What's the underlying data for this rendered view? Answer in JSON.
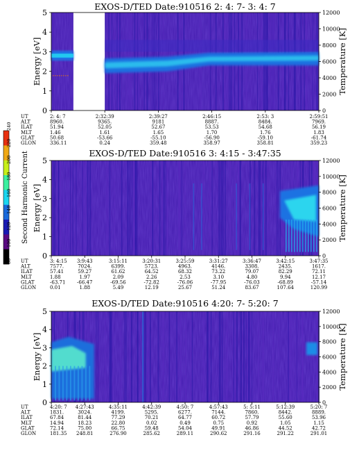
{
  "chart_data": [
    {
      "type": "heatmap",
      "title": "EXOS-D/TED   Date:910516  2: 4: 7- 3: 4: 7",
      "ylabel": "Energy [eV]",
      "y2label": "Temperature [K]",
      "ylim": [
        0,
        5
      ],
      "y_ticks": [
        "0",
        "1",
        "2",
        "3",
        "4",
        "5"
      ],
      "y2lim": [
        0,
        12000
      ],
      "y2_ticks": [
        "0",
        "2000",
        "4000",
        "6000",
        "8000",
        "10000",
        "12000"
      ],
      "data_gap": [
        "2: 4: 7",
        "2:32:39"
      ],
      "row_labels": [
        "UT",
        "ALT",
        "ILAT",
        "MLT",
        "GLAT",
        "GLON"
      ],
      "columns": [
        {
          "UT": "2: 4: 7",
          "ALT": "8960.",
          "ILAT": "51.94",
          "MLT": "1.46",
          "GLAT": "50.68",
          "GLON": "336.11"
        },
        {
          "UT": "2:32:39",
          "ALT": "9365.",
          "ILAT": "52.05",
          "MLT": "1.61",
          "GLAT": "-53.66",
          "GLON": "0.24"
        },
        {
          "UT": "2:39:27",
          "ALT": "9181",
          "ILAT": "52.67",
          "MLT": "1.65",
          "GLAT": "-55.10",
          "GLON": "359.48"
        },
        {
          "UT": "2:46:15",
          "ALT": "8887.",
          "ILAT": "53.53",
          "MLT": "1.70",
          "GLAT": "-56.90",
          "GLON": "358.97"
        },
        {
          "UT": "2:53: 3",
          "ALT": "8484.",
          "ILAT": "54.68",
          "MLT": "1.76",
          "GLAT": "-59.10",
          "GLON": "358.81"
        },
        {
          "UT": "2:59:51",
          "ALT": "7969.",
          "ILAT": "56.19",
          "MLT": "1.83",
          "GLAT": "-61.74",
          "GLON": "359.23"
        }
      ]
    },
    {
      "type": "heatmap",
      "title": "EXOS-D/TED   Date:910516  3: 4:15 - 3:47:35",
      "ylabel": "Energy [eV]",
      "y2label": "Temperature [K]",
      "ylim": [
        0,
        5
      ],
      "y_ticks": [
        "0",
        "1",
        "2",
        "3",
        "4",
        "5"
      ],
      "y2lim": [
        0,
        12000
      ],
      "y2_ticks": [
        "0",
        "2000",
        "4000",
        "6000",
        "8000",
        "10000",
        "12000"
      ],
      "row_labels": [
        "UT",
        "ALT",
        "ILAT",
        "MLT",
        "GLAT",
        "GLON"
      ],
      "columns": [
        {
          "UT": "3: 4:15",
          "ALT": "7577.",
          "ILAT": "57.41",
          "MLT": "1.88",
          "GLAT": "-63.71",
          "GLON": "0.01"
        },
        {
          "UT": "3:9:43",
          "ALT": "7024.",
          "ILAT": "59.27",
          "MLT": "1.97",
          "GLAT": "-66.47",
          "GLON": "1.88"
        },
        {
          "UT": "3:15:11",
          "ALT": "6399.",
          "ILAT": "61.62",
          "MLT": "2.09",
          "GLAT": "-69.56",
          "GLON": "5.49"
        },
        {
          "UT": "3:20:31",
          "ALT": "5723.",
          "ILAT": "64.52",
          "MLT": "2.26",
          "GLAT": "-72.82",
          "GLON": "12.19"
        },
        {
          "UT": "3:25:59",
          "ALT": "4963.",
          "ILAT": "68.32",
          "MLT": "2.53",
          "GLAT": "-76.06",
          "GLON": "25.67"
        },
        {
          "UT": "3:31:27",
          "ALT": "4146.",
          "ILAT": "73.22",
          "MLT": "3.10",
          "GLAT": "-77.95",
          "GLON": "51.24"
        },
        {
          "UT": "3:36:47",
          "ALT": "3308.",
          "ILAT": "79.07",
          "MLT": "4.80",
          "GLAT": "-76.03",
          "GLON": "83.67"
        },
        {
          "UT": "3:42:15",
          "ALT": "2435.",
          "ILAT": "82.29",
          "MLT": "9.94",
          "GLAT": "-68.89",
          "GLON": "107.64"
        },
        {
          "UT": "3:47:35",
          "ALT": "1617.",
          "ILAT": "72.11",
          "MLT": "12.17",
          "GLAT": "-57.14",
          "GLON": "120.99"
        }
      ]
    },
    {
      "type": "heatmap",
      "title": "EXOS-D/TED   Date:910516  4:20: 7- 5:20: 7",
      "ylabel": "Energy [eV]",
      "y2label": "Temperature [K]",
      "ylim": [
        0,
        5
      ],
      "y_ticks": [
        "0",
        "1",
        "2",
        "3",
        "4",
        "5"
      ],
      "y2lim": [
        0,
        12000
      ],
      "y2_ticks": [
        "0",
        "2000",
        "4000",
        "6000",
        "8000",
        "10000",
        "12000"
      ],
      "row_labels": [
        "UT",
        "ALT",
        "ILAT",
        "MLT",
        "GLAT",
        "GLON"
      ],
      "columns": [
        {
          "UT": "4:20: 7",
          "ALT": "1831.",
          "ILAT": "67.84",
          "MLT": "14.94",
          "GLAT": "72.14",
          "GLON": "181.35"
        },
        {
          "UT": "4:27:43",
          "ALT": "3024.",
          "ILAT": "81.44",
          "MLT": "18.23",
          "GLAT": "75.00",
          "GLON": "248.81"
        },
        {
          "UT": "4:35:11",
          "ALT": "4199.",
          "ILAT": "77.29",
          "MLT": "22.80",
          "GLAT": "66.75",
          "GLON": "276.90"
        },
        {
          "UT": "4:42:39",
          "ALT": "5295.",
          "ILAT": "70.21",
          "MLT": "0.02",
          "GLAT": "59.48",
          "GLON": "285.62"
        },
        {
          "UT": "4:50: 7",
          "ALT": "6277.",
          "ILAT": "64.77",
          "MLT": "0.49",
          "GLAT": "54.04",
          "GLON": "289.11"
        },
        {
          "UT": "4:57:43",
          "ALT": "7144.",
          "ILAT": "60.72",
          "MLT": "0.75",
          "GLAT": "49.91",
          "GLON": "290.62"
        },
        {
          "UT": "5: 5:11",
          "ALT": "7860.",
          "ILAT": "57.79",
          "MLT": "0.92",
          "GLAT": "46.86",
          "GLON": "291.16"
        },
        {
          "UT": "5:12:39",
          "ALT": "8442.",
          "ILAT": "55.60",
          "MLT": "1.05",
          "GLAT": "44.52",
          "GLON": "291.22"
        },
        {
          "UT": "5:20: 7",
          "ALT": "8889.",
          "ILAT": "53.96",
          "MLT": "1.15",
          "GLAT": "42.72",
          "GLON": "291.01"
        }
      ]
    }
  ],
  "colorbar": {
    "label": "Second Harmonic Current",
    "ticks": [
      "80",
      "100",
      "120",
      "140",
      "160",
      "180",
      "200",
      "220",
      "240"
    ],
    "range": [
      80,
      240
    ],
    "colors": [
      "#000000",
      "#5a0a82",
      "#1a1ab4",
      "#1a6adc",
      "#1ad6f0",
      "#3cf0a0",
      "#c8f01a",
      "#f0a814",
      "#e83010"
    ]
  }
}
